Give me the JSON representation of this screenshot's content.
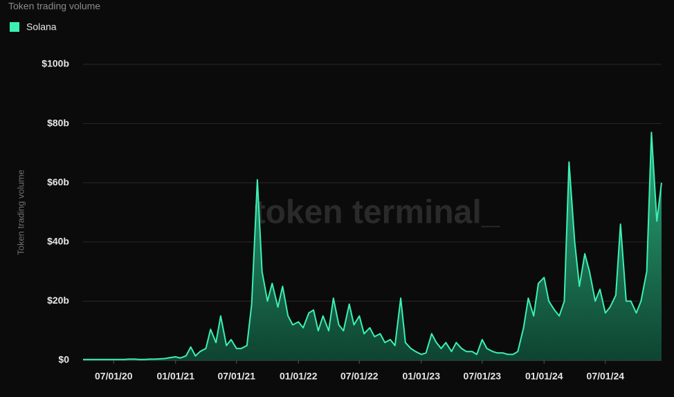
{
  "chart_data": {
    "type": "area",
    "title": "Token trading volume",
    "ylabel": "Token trading volume",
    "watermark": "token terminal_",
    "color": "#3cf0b4",
    "grid": true,
    "legend": "top-left",
    "xlim": [
      "2020-04-01",
      "2024-12-15"
    ],
    "xticks": [
      {
        "value": "2020-07-01",
        "label": "07/01/20"
      },
      {
        "value": "2021-01-01",
        "label": "01/01/21"
      },
      {
        "value": "2021-07-01",
        "label": "07/01/21"
      },
      {
        "value": "2022-01-01",
        "label": "01/01/22"
      },
      {
        "value": "2022-07-01",
        "label": "07/01/22"
      },
      {
        "value": "2023-01-01",
        "label": "01/01/23"
      },
      {
        "value": "2023-07-01",
        "label": "07/01/23"
      },
      {
        "value": "2024-01-01",
        "label": "01/01/24"
      },
      {
        "value": "2024-07-01",
        "label": "07/01/24"
      }
    ],
    "ylim": [
      0,
      100
    ],
    "yticks": [
      {
        "value": 0,
        "label": "$0"
      },
      {
        "value": 20,
        "label": "$20b"
      },
      {
        "value": 40,
        "label": "$40b"
      },
      {
        "value": 60,
        "label": "$60b"
      },
      {
        "value": 80,
        "label": "$80b"
      },
      {
        "value": 100,
        "label": "$100b"
      }
    ],
    "x": [
      "2020-04-01",
      "2020-04-15",
      "2020-05-01",
      "2020-05-15",
      "2020-06-01",
      "2020-06-15",
      "2020-07-01",
      "2020-07-15",
      "2020-08-01",
      "2020-08-15",
      "2020-09-01",
      "2020-09-15",
      "2020-10-01",
      "2020-10-15",
      "2020-11-01",
      "2020-11-15",
      "2020-12-01",
      "2020-12-15",
      "2021-01-01",
      "2021-01-15",
      "2021-02-01",
      "2021-02-15",
      "2021-03-01",
      "2021-03-15",
      "2021-04-01",
      "2021-04-15",
      "2021-05-01",
      "2021-05-15",
      "2021-06-01",
      "2021-06-15",
      "2021-07-01",
      "2021-07-15",
      "2021-08-01",
      "2021-08-15",
      "2021-09-01",
      "2021-09-15",
      "2021-10-01",
      "2021-10-15",
      "2021-11-01",
      "2021-11-15",
      "2021-12-01",
      "2021-12-15",
      "2022-01-01",
      "2022-01-15",
      "2022-02-01",
      "2022-02-15",
      "2022-03-01",
      "2022-03-15",
      "2022-04-01",
      "2022-04-15",
      "2022-05-01",
      "2022-05-15",
      "2022-06-01",
      "2022-06-15",
      "2022-07-01",
      "2022-07-15",
      "2022-08-01",
      "2022-08-15",
      "2022-09-01",
      "2022-09-15",
      "2022-10-01",
      "2022-10-15",
      "2022-11-01",
      "2022-11-15",
      "2022-12-01",
      "2022-12-15",
      "2023-01-01",
      "2023-01-15",
      "2023-02-01",
      "2023-02-15",
      "2023-03-01",
      "2023-03-15",
      "2023-04-01",
      "2023-04-15",
      "2023-05-01",
      "2023-05-15",
      "2023-06-01",
      "2023-06-15",
      "2023-07-01",
      "2023-07-15",
      "2023-08-01",
      "2023-08-15",
      "2023-09-01",
      "2023-09-15",
      "2023-10-01",
      "2023-10-15",
      "2023-11-01",
      "2023-11-15",
      "2023-12-01",
      "2023-12-15",
      "2024-01-01",
      "2024-01-15",
      "2024-02-01",
      "2024-02-15",
      "2024-03-01",
      "2024-03-15",
      "2024-04-01",
      "2024-04-15",
      "2024-05-01",
      "2024-05-15",
      "2024-06-01",
      "2024-06-15",
      "2024-07-01",
      "2024-07-15",
      "2024-08-01",
      "2024-08-15",
      "2024-09-01",
      "2024-09-15",
      "2024-10-01",
      "2024-10-15",
      "2024-11-01",
      "2024-11-15",
      "2024-12-01",
      "2024-12-15"
    ],
    "series": [
      {
        "name": "Solana",
        "color": "#3cf0b4",
        "values": [
          0.3,
          0.3,
          0.3,
          0.3,
          0.3,
          0.3,
          0.3,
          0.3,
          0.3,
          0.4,
          0.4,
          0.3,
          0.3,
          0.4,
          0.4,
          0.5,
          0.6,
          0.9,
          1.2,
          0.8,
          1.5,
          4.5,
          1.5,
          3,
          4,
          10.5,
          6,
          15,
          5,
          7,
          4,
          4,
          5,
          19,
          61,
          30,
          20,
          26,
          18,
          25,
          15,
          12,
          13,
          11,
          16,
          17,
          10,
          15,
          10,
          21,
          12,
          10,
          19,
          12,
          15,
          9,
          11,
          8,
          9,
          6,
          7,
          5,
          21,
          6,
          4,
          3,
          2,
          2.5,
          9,
          6,
          4,
          6,
          3,
          6,
          4,
          3,
          3,
          2,
          7,
          4,
          3,
          2.5,
          2.5,
          2,
          2,
          3,
          11,
          21,
          15,
          26,
          28,
          20,
          17,
          15,
          20,
          67,
          40,
          25,
          36,
          30,
          20,
          24,
          16,
          18,
          22,
          46,
          20,
          20,
          16,
          20,
          30,
          77,
          47,
          60
        ]
      }
    ]
  }
}
